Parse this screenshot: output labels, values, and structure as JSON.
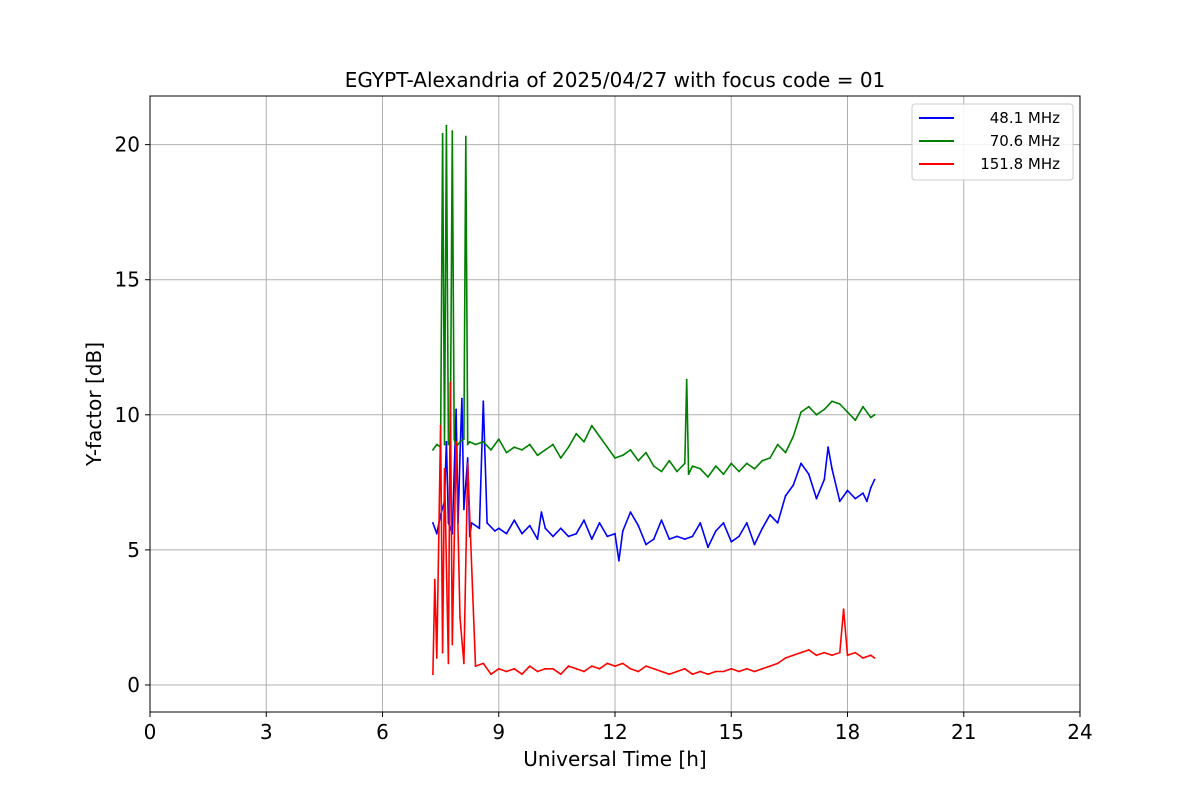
{
  "chart_data": {
    "type": "line",
    "title": "EGYPT-Alexandria of 2025/04/27 with focus code = 01",
    "xlabel": "Universal Time [h]",
    "ylabel": "Y-factor [dB]",
    "xlim": [
      0,
      24
    ],
    "ylim": [
      -1,
      21.8
    ],
    "xticks": [
      0,
      3,
      6,
      9,
      12,
      15,
      18,
      21,
      24
    ],
    "yticks": [
      0,
      5,
      10,
      15,
      20
    ],
    "grid": true,
    "legend_position": "top-right",
    "series": [
      {
        "name": "48.1 MHz",
        "color": "#0000ff",
        "x": [
          7.3,
          7.4,
          7.5,
          7.6,
          7.65,
          7.7,
          7.8,
          7.9,
          7.95,
          8.0,
          8.05,
          8.1,
          8.2,
          8.25,
          8.3,
          8.5,
          8.6,
          8.7,
          8.9,
          9.0,
          9.2,
          9.4,
          9.6,
          9.8,
          10.0,
          10.1,
          10.2,
          10.4,
          10.6,
          10.8,
          11.0,
          11.2,
          11.4,
          11.6,
          11.8,
          12.0,
          12.1,
          12.2,
          12.4,
          12.6,
          12.8,
          13.0,
          13.2,
          13.4,
          13.6,
          13.8,
          14.0,
          14.2,
          14.4,
          14.6,
          14.8,
          15.0,
          15.2,
          15.4,
          15.6,
          15.8,
          16.0,
          16.2,
          16.4,
          16.6,
          16.8,
          17.0,
          17.2,
          17.4,
          17.5,
          17.6,
          17.8,
          18.0,
          18.2,
          18.4,
          18.5,
          18.6,
          18.7
        ],
        "y": [
          6.0,
          5.6,
          6.3,
          6.8,
          9.0,
          6.0,
          5.6,
          10.2,
          6.0,
          8.5,
          10.6,
          6.5,
          8.4,
          5.5,
          6.0,
          5.8,
          10.5,
          6.0,
          5.7,
          5.8,
          5.6,
          6.1,
          5.6,
          5.9,
          5.4,
          6.4,
          5.8,
          5.5,
          5.8,
          5.5,
          5.6,
          6.1,
          5.4,
          6.0,
          5.5,
          5.6,
          4.6,
          5.7,
          6.4,
          5.9,
          5.2,
          5.4,
          6.1,
          5.4,
          5.5,
          5.4,
          5.5,
          6.0,
          5.1,
          5.7,
          6.0,
          5.3,
          5.5,
          6.0,
          5.2,
          5.8,
          6.3,
          6.0,
          7.0,
          7.4,
          8.2,
          7.8,
          6.9,
          7.6,
          8.8,
          8.0,
          6.8,
          7.2,
          6.9,
          7.1,
          6.8,
          7.3,
          7.6
        ]
      },
      {
        "name": "70.6 MHz",
        "color": "#008000",
        "x": [
          7.3,
          7.4,
          7.5,
          7.55,
          7.6,
          7.65,
          7.7,
          7.75,
          7.8,
          7.85,
          7.9,
          8.0,
          8.1,
          8.15,
          8.2,
          8.25,
          8.4,
          8.6,
          8.8,
          9.0,
          9.2,
          9.4,
          9.6,
          9.8,
          10.0,
          10.2,
          10.4,
          10.6,
          10.8,
          11.0,
          11.2,
          11.4,
          11.6,
          11.8,
          12.0,
          12.2,
          12.4,
          12.6,
          12.8,
          13.0,
          13.2,
          13.4,
          13.6,
          13.8,
          13.85,
          13.9,
          14.0,
          14.2,
          14.4,
          14.6,
          14.8,
          15.0,
          15.2,
          15.4,
          15.6,
          15.8,
          16.0,
          16.2,
          16.4,
          16.6,
          16.8,
          17.0,
          17.2,
          17.4,
          17.6,
          17.8,
          18.0,
          18.2,
          18.4,
          18.6,
          18.7
        ],
        "y": [
          8.7,
          8.9,
          8.8,
          20.4,
          8.9,
          20.7,
          8.9,
          9.0,
          20.5,
          9.1,
          8.8,
          9.0,
          9.1,
          20.3,
          8.9,
          9.0,
          8.9,
          9.0,
          8.7,
          9.1,
          8.6,
          8.8,
          8.7,
          8.9,
          8.5,
          8.7,
          8.9,
          8.4,
          8.8,
          9.3,
          9.0,
          9.6,
          9.2,
          8.8,
          8.4,
          8.5,
          8.7,
          8.3,
          8.6,
          8.1,
          7.9,
          8.3,
          7.9,
          8.2,
          11.3,
          7.8,
          8.1,
          8.0,
          7.7,
          8.1,
          7.8,
          8.2,
          7.9,
          8.2,
          8.0,
          8.3,
          8.4,
          8.9,
          8.6,
          9.2,
          10.1,
          10.3,
          10.0,
          10.2,
          10.5,
          10.4,
          10.1,
          9.8,
          10.3,
          9.9,
          10.0
        ]
      },
      {
        "name": "151.8 MHz",
        "color": "#ff0000",
        "x": [
          7.3,
          7.35,
          7.4,
          7.5,
          7.55,
          7.6,
          7.7,
          7.75,
          7.8,
          7.9,
          8.0,
          8.1,
          8.2,
          8.4,
          8.6,
          8.8,
          9.0,
          9.2,
          9.4,
          9.6,
          9.8,
          10.0,
          10.2,
          10.4,
          10.6,
          10.8,
          11.0,
          11.2,
          11.4,
          11.6,
          11.8,
          12.0,
          12.2,
          12.4,
          12.6,
          12.8,
          13.0,
          13.2,
          13.4,
          13.6,
          13.8,
          14.0,
          14.2,
          14.4,
          14.6,
          14.8,
          15.0,
          15.2,
          15.4,
          15.6,
          15.8,
          16.0,
          16.2,
          16.4,
          16.6,
          16.8,
          17.0,
          17.2,
          17.4,
          17.6,
          17.8,
          17.9,
          18.0,
          18.2,
          18.4,
          18.6,
          18.7
        ],
        "y": [
          0.4,
          3.9,
          1.0,
          9.6,
          1.2,
          8.0,
          0.8,
          11.2,
          1.5,
          9.0,
          2.5,
          0.8,
          8.2,
          0.7,
          0.8,
          0.4,
          0.6,
          0.5,
          0.6,
          0.4,
          0.7,
          0.5,
          0.6,
          0.6,
          0.4,
          0.7,
          0.6,
          0.5,
          0.7,
          0.6,
          0.8,
          0.7,
          0.8,
          0.6,
          0.5,
          0.7,
          0.6,
          0.5,
          0.4,
          0.5,
          0.6,
          0.4,
          0.5,
          0.4,
          0.5,
          0.5,
          0.6,
          0.5,
          0.6,
          0.5,
          0.6,
          0.7,
          0.8,
          1.0,
          1.1,
          1.2,
          1.3,
          1.1,
          1.2,
          1.1,
          1.2,
          2.8,
          1.1,
          1.2,
          1.0,
          1.1,
          1.0
        ]
      }
    ]
  }
}
